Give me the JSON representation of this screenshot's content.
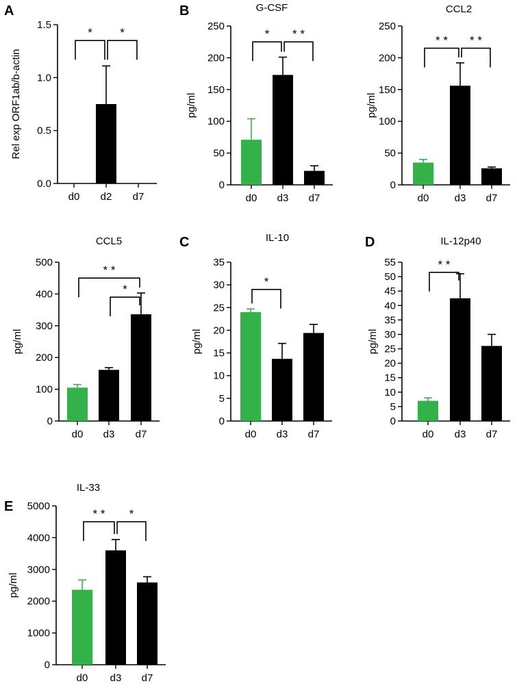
{
  "colors": {
    "control": "#33b24a",
    "treated": "#000000",
    "axis": "#000000"
  },
  "chart_data": [
    {
      "id": "A",
      "panel_letter": "A",
      "type": "bar",
      "title": "",
      "ylabel": "Rel exp ORF1ab/b-actin",
      "xlabel": "",
      "categories": [
        "d0",
        "d2",
        "d7"
      ],
      "values": [
        0,
        0.75,
        0
      ],
      "errors": [
        0,
        0.36,
        0
      ],
      "colors": [
        "treated",
        "treated",
        "treated"
      ],
      "ylim": [
        0,
        1.5
      ],
      "yticks": [
        0,
        0.5,
        1.0,
        1.5
      ],
      "ytick_labels": [
        "0.0",
        "0.5",
        "1.0",
        "1.5"
      ],
      "significance": [
        {
          "from": 0,
          "to": 1,
          "label": "*",
          "y": 1.35
        },
        {
          "from": 1,
          "to": 2,
          "label": "*",
          "y": 1.35
        }
      ]
    },
    {
      "id": "B1",
      "panel_letter": "B",
      "type": "bar",
      "title": "G-CSF",
      "ylabel": "pg/ml",
      "xlabel": "",
      "categories": [
        "d0",
        "d3",
        "d7"
      ],
      "values": [
        71,
        173,
        22
      ],
      "errors": [
        33,
        28,
        8
      ],
      "colors": [
        "control",
        "treated",
        "treated"
      ],
      "ylim": [
        0,
        250
      ],
      "yticks": [
        0,
        50,
        100,
        150,
        200,
        250
      ],
      "ytick_labels": [
        "0",
        "50",
        "100",
        "150",
        "200",
        "250"
      ],
      "significance": [
        {
          "from": 0,
          "to": 1,
          "label": "*",
          "y": 225
        },
        {
          "from": 1,
          "to": 2,
          "label": "* *",
          "y": 225
        }
      ]
    },
    {
      "id": "B2",
      "panel_letter": "",
      "type": "bar",
      "title": "CCL2",
      "ylabel": "pg/ml",
      "xlabel": "",
      "categories": [
        "d0",
        "d3",
        "d7"
      ],
      "values": [
        35,
        156,
        26
      ],
      "errors": [
        5,
        36,
        2
      ],
      "colors": [
        "control",
        "treated",
        "treated"
      ],
      "ylim": [
        0,
        250
      ],
      "yticks": [
        0,
        50,
        100,
        150,
        200,
        250
      ],
      "ytick_labels": [
        "0",
        "50",
        "100",
        "150",
        "200",
        "250"
      ],
      "significance": [
        {
          "from": 0,
          "to": 1,
          "label": "* *",
          "y": 215
        },
        {
          "from": 1,
          "to": 2,
          "label": "* *",
          "y": 215
        }
      ]
    },
    {
      "id": "CCL5",
      "panel_letter": "",
      "type": "bar",
      "title": "CCL5",
      "ylabel": "pg/ml",
      "xlabel": "",
      "categories": [
        "d0",
        "d3",
        "d7"
      ],
      "values": [
        105,
        161,
        336
      ],
      "errors": [
        10,
        7,
        67
      ],
      "colors": [
        "control",
        "treated",
        "treated"
      ],
      "ylim": [
        0,
        500
      ],
      "yticks": [
        0,
        100,
        200,
        300,
        400,
        500
      ],
      "ytick_labels": [
        "0",
        "100",
        "200",
        "300",
        "400",
        "500"
      ],
      "significance": [
        {
          "from": 0,
          "to": 2,
          "label": "* *",
          "y": 450
        },
        {
          "from": 1,
          "to": 2,
          "label": "*",
          "y": 390
        }
      ]
    },
    {
      "id": "C",
      "panel_letter": "C",
      "type": "bar",
      "title": "IL-10",
      "ylabel": "pg/ml",
      "xlabel": "",
      "categories": [
        "d0",
        "d3",
        "d7"
      ],
      "values": [
        24,
        13.7,
        19.4
      ],
      "errors": [
        0.7,
        3.4,
        1.9
      ],
      "colors": [
        "control",
        "treated",
        "treated"
      ],
      "ylim": [
        0,
        35
      ],
      "yticks": [
        0,
        5,
        10,
        15,
        20,
        25,
        30,
        35
      ],
      "ytick_labels": [
        "0",
        "5",
        "10",
        "15",
        "20",
        "25",
        "30",
        "35"
      ],
      "significance": [
        {
          "from": 0,
          "to": 1,
          "label": "*",
          "y": 29
        }
      ]
    },
    {
      "id": "D",
      "panel_letter": "D",
      "type": "bar",
      "title": "IL-12p40",
      "ylabel": "pg/ml",
      "xlabel": "",
      "categories": [
        "d0",
        "d3",
        "d7"
      ],
      "values": [
        7,
        42.5,
        26
      ],
      "errors": [
        1,
        8.5,
        4
      ],
      "colors": [
        "control",
        "treated",
        "treated"
      ],
      "ylim": [
        0,
        55
      ],
      "yticks": [
        0,
        5,
        10,
        15,
        20,
        25,
        30,
        35,
        40,
        45,
        50,
        55
      ],
      "ytick_labels": [
        "0",
        "5",
        "10",
        "15",
        "20",
        "25",
        "30",
        "35",
        "40",
        "45",
        "50",
        "55"
      ],
      "significance": [
        {
          "from": 0,
          "to": 1,
          "label": "* *",
          "y": 51.5
        }
      ]
    },
    {
      "id": "E",
      "panel_letter": "E",
      "type": "bar",
      "title": "IL-33",
      "ylabel": "pg/ml",
      "xlabel": "",
      "categories": [
        "d0",
        "d3",
        "d7"
      ],
      "values": [
        2360,
        3600,
        2590
      ],
      "errors": [
        310,
        340,
        180
      ],
      "colors": [
        "control",
        "treated",
        "treated"
      ],
      "ylim": [
        0,
        5000
      ],
      "yticks": [
        0,
        1000,
        2000,
        3000,
        4000,
        5000
      ],
      "ytick_labels": [
        "0",
        "1000",
        "2000",
        "3000",
        "4000",
        "5000"
      ],
      "significance": [
        {
          "from": 0,
          "to": 1,
          "label": "* *",
          "y": 4500
        },
        {
          "from": 1,
          "to": 2,
          "label": "*",
          "y": 4500
        }
      ]
    }
  ]
}
